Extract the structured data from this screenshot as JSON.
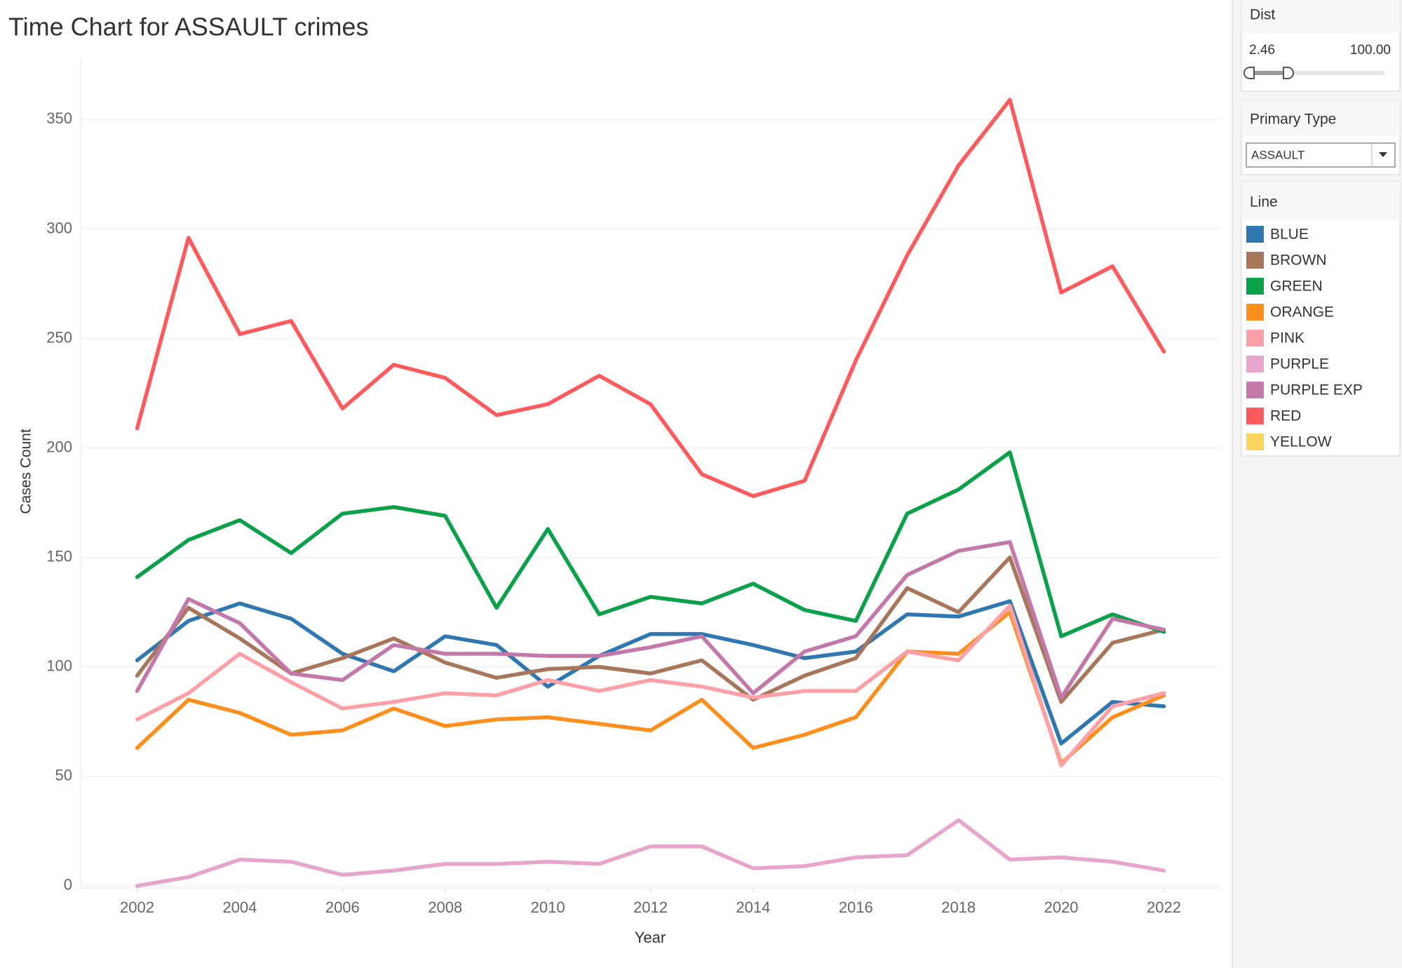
{
  "chart_data": {
    "type": "line",
    "title": "Time Chart for ASSAULT crimes",
    "x_label": "Year",
    "y_label": "Cases Count",
    "legend_title": "Line",
    "x": [
      2002,
      2003,
      2004,
      2005,
      2006,
      2007,
      2008,
      2009,
      2010,
      2011,
      2012,
      2013,
      2014,
      2015,
      2016,
      2017,
      2018,
      2019,
      2020,
      2021,
      2022
    ],
    "xlim": [
      2000.9,
      2023.1
    ],
    "xticks": [
      2002,
      2004,
      2006,
      2008,
      2010,
      2012,
      2014,
      2016,
      2018,
      2020,
      2022
    ],
    "ylim": [
      -1,
      378
    ],
    "yticks": [
      0,
      50,
      100,
      150,
      200,
      250,
      300,
      350
    ],
    "grid": true,
    "series": [
      {
        "name": "BLUE",
        "color": "#2f77b0",
        "values": [
          103,
          121,
          129,
          122,
          106,
          98,
          114,
          110,
          91,
          105,
          115,
          115,
          110,
          104,
          107,
          124,
          123,
          130,
          65,
          84,
          82
        ]
      },
      {
        "name": "BROWN",
        "color": "#a8765b",
        "values": [
          96,
          127,
          113,
          97,
          104,
          113,
          102,
          95,
          99,
          100,
          97,
          103,
          85,
          96,
          104,
          136,
          125,
          150,
          84,
          111,
          117
        ]
      },
      {
        "name": "GREEN",
        "color": "#0ba04a",
        "values": [
          141,
          158,
          167,
          152,
          170,
          173,
          169,
          127,
          163,
          124,
          132,
          129,
          138,
          126,
          121,
          170,
          181,
          198,
          114,
          124,
          116
        ]
      },
      {
        "name": "ORANGE",
        "color": "#ff8f1c",
        "values": [
          63,
          85,
          79,
          69,
          71,
          81,
          73,
          76,
          77,
          74,
          71,
          85,
          63,
          69,
          77,
          107,
          106,
          125,
          56,
          77,
          87
        ]
      },
      {
        "name": "PINK",
        "color": "#ffa0a6",
        "values": [
          76,
          88,
          106,
          93,
          81,
          84,
          88,
          87,
          94,
          89,
          94,
          91,
          86,
          89,
          89,
          107,
          103,
          128,
          55,
          82,
          88
        ]
      },
      {
        "name": "PURPLE",
        "color": "#e8a5cb",
        "values": [
          0,
          4,
          12,
          11,
          5,
          7,
          10,
          10,
          11,
          10,
          18,
          18,
          8,
          9,
          13,
          14,
          30,
          12,
          13,
          11,
          7
        ]
      },
      {
        "name": "PURPLE EXP",
        "color": "#c278a8",
        "values": [
          89,
          131,
          120,
          97,
          94,
          110,
          106,
          106,
          105,
          105,
          109,
          114,
          88,
          107,
          114,
          142,
          153,
          157,
          86,
          122,
          117
        ]
      },
      {
        "name": "RED",
        "color": "#ff5a5e",
        "values": [
          209,
          296,
          252,
          258,
          218,
          238,
          232,
          215,
          220,
          233,
          220,
          188,
          178,
          185,
          240,
          288,
          329,
          359,
          271,
          283,
          244
        ]
      },
      {
        "name": "YELLOW",
        "color": "#fbd45c",
        "values": [
          null,
          null,
          null,
          null,
          null,
          null,
          null,
          null,
          null,
          null,
          null,
          null,
          null,
          null,
          null,
          null,
          null,
          null,
          null,
          null,
          null
        ]
      }
    ]
  },
  "controls": {
    "dist": {
      "title": "Dist",
      "min": "2.46",
      "max": "100.00"
    },
    "primary_type": {
      "title": "Primary Type",
      "selected": "ASSAULT"
    }
  }
}
